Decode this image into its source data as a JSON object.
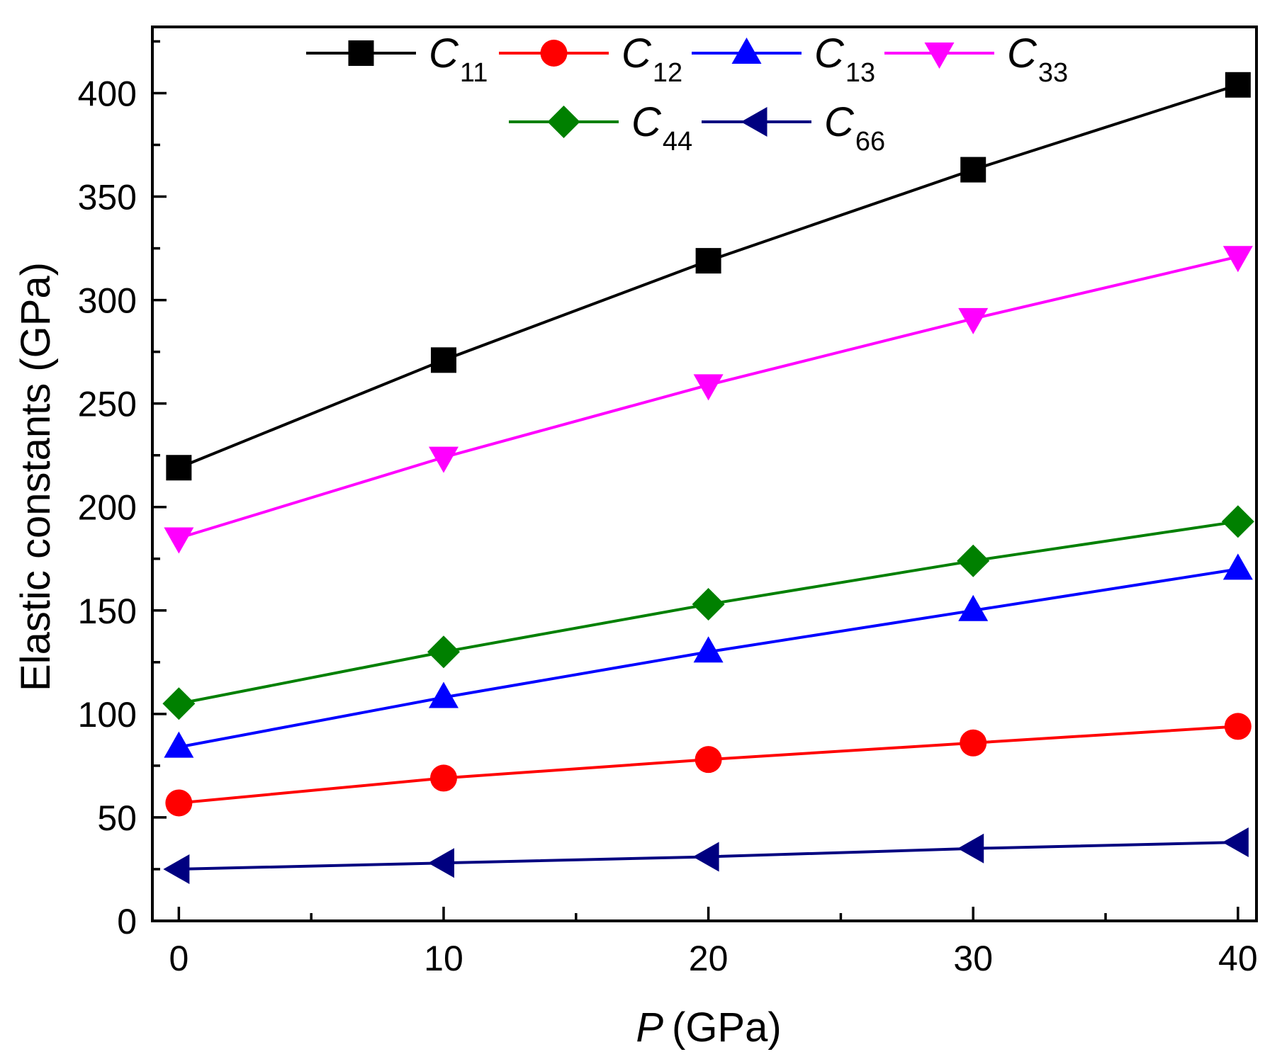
{
  "chart_data": {
    "type": "line",
    "title": "",
    "xlabel_symbol": "P",
    "xlabel_unit": "(GPa)",
    "ylabel": "Elastic constants (GPa)",
    "x": [
      0,
      10,
      20,
      30,
      40
    ],
    "xlim": [
      -1,
      40.7
    ],
    "ylim": [
      0,
      432
    ],
    "xticks": [
      0,
      10,
      20,
      30,
      40
    ],
    "yticks": [
      0,
      50,
      100,
      150,
      200,
      250,
      300,
      350,
      400
    ],
    "grid": false,
    "legend_position": "top",
    "series": [
      {
        "name": "C",
        "sub": "11",
        "color": "#000000",
        "marker": "square",
        "values": [
          219,
          271,
          319,
          363,
          404
        ]
      },
      {
        "name": "C",
        "sub": "12",
        "color": "#ff0000",
        "marker": "circle",
        "values": [
          57,
          69,
          78,
          86,
          94
        ]
      },
      {
        "name": "C",
        "sub": "13",
        "color": "#0000ff",
        "marker": "triangle-up",
        "values": [
          84,
          108,
          130,
          150,
          170
        ]
      },
      {
        "name": "C",
        "sub": "33",
        "color": "#ff00ff",
        "marker": "triangle-down",
        "values": [
          185,
          224,
          259,
          291,
          321
        ]
      },
      {
        "name": "C",
        "sub": "44",
        "color": "#008000",
        "marker": "diamond",
        "values": [
          105,
          130,
          153,
          174,
          193
        ]
      },
      {
        "name": "C",
        "sub": "66",
        "color": "#000080",
        "marker": "triangle-left",
        "values": [
          25,
          28,
          31,
          35,
          38
        ]
      }
    ]
  }
}
